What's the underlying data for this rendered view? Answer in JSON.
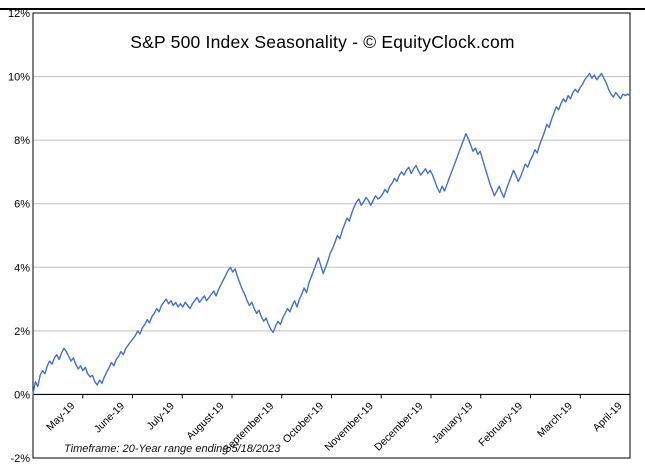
{
  "colors": {
    "line": "#4472C4",
    "gridline": "#C0C0C0",
    "axis": "#000000",
    "border": "#000000",
    "background": "#FFFFFF"
  },
  "footer": {
    "note": "Timeframe: 20-Year range ending 5/18/2023"
  },
  "chart_data": {
    "type": "line",
    "title": "S&P 500 Index Seasonality - © EquityClock.com",
    "note": "Timeframe: 20-Year range ending 5/18/2023",
    "categories": [
      "May-19",
      "June-19",
      "July-19",
      "August-19",
      "September-19",
      "October-19",
      "November-19",
      "December-19",
      "January-19",
      "February-19",
      "March-19",
      "April-19"
    ],
    "y_ticks": [
      "12%",
      "10%",
      "8%",
      "6%",
      "4%",
      "2%",
      "0%",
      "-2%"
    ],
    "ylim": [
      -2,
      12
    ],
    "grid": "horizontal",
    "legend": "none",
    "points_per_month": 21,
    "values": [
      0.0,
      0.4,
      0.25,
      0.6,
      0.75,
      0.65,
      0.9,
      1.05,
      0.95,
      1.15,
      1.25,
      1.1,
      1.3,
      1.45,
      1.35,
      1.2,
      1.05,
      1.15,
      0.95,
      0.8,
      0.9,
      0.75,
      0.85,
      0.65,
      0.55,
      0.6,
      0.4,
      0.3,
      0.45,
      0.35,
      0.55,
      0.7,
      0.85,
      1.0,
      0.9,
      1.1,
      1.2,
      1.35,
      1.25,
      1.45,
      1.55,
      1.65,
      1.75,
      1.85,
      2.0,
      1.9,
      2.1,
      2.2,
      2.35,
      2.25,
      2.45,
      2.55,
      2.7,
      2.6,
      2.8,
      2.9,
      3.0,
      2.85,
      2.95,
      2.8,
      2.9,
      2.75,
      2.85,
      2.75,
      2.9,
      2.8,
      2.7,
      2.85,
      2.95,
      3.05,
      2.9,
      3.0,
      3.1,
      2.95,
      3.05,
      3.15,
      3.25,
      3.1,
      3.3,
      3.45,
      3.6,
      3.75,
      3.9,
      4.0,
      3.85,
      3.95,
      3.7,
      3.5,
      3.3,
      3.15,
      2.95,
      2.8,
      2.9,
      2.7,
      2.55,
      2.65,
      2.45,
      2.3,
      2.4,
      2.2,
      2.05,
      1.95,
      2.15,
      2.3,
      2.2,
      2.4,
      2.55,
      2.7,
      2.6,
      2.8,
      2.95,
      2.75,
      3.0,
      3.15,
      3.35,
      3.2,
      3.5,
      3.7,
      3.9,
      4.1,
      4.3,
      4.05,
      3.8,
      4.0,
      4.2,
      4.45,
      4.6,
      4.8,
      5.0,
      4.9,
      5.15,
      5.35,
      5.55,
      5.45,
      5.7,
      5.9,
      6.05,
      6.15,
      5.95,
      6.05,
      6.2,
      6.1,
      5.95,
      6.1,
      6.25,
      6.15,
      6.2,
      6.3,
      6.45,
      6.35,
      6.55,
      6.65,
      6.8,
      6.7,
      6.9,
      7.0,
      6.9,
      7.05,
      7.15,
      6.95,
      7.1,
      7.2,
      7.05,
      6.9,
      7.0,
      7.1,
      6.95,
      7.05,
      6.9,
      6.7,
      6.5,
      6.35,
      6.55,
      6.4,
      6.6,
      6.8,
      7.0,
      7.2,
      7.4,
      7.6,
      7.8,
      8.0,
      8.2,
      8.05,
      7.85,
      7.65,
      7.75,
      7.55,
      7.65,
      7.4,
      7.15,
      6.9,
      6.65,
      6.45,
      6.25,
      6.4,
      6.55,
      6.35,
      6.2,
      6.45,
      6.65,
      6.85,
      7.05,
      6.9,
      6.7,
      6.85,
      7.05,
      7.25,
      7.15,
      7.35,
      7.5,
      7.7,
      7.6,
      7.85,
      8.05,
      8.25,
      8.5,
      8.4,
      8.65,
      8.85,
      9.05,
      8.95,
      9.15,
      9.3,
      9.2,
      9.4,
      9.3,
      9.5,
      9.6,
      9.5,
      9.65,
      9.75,
      9.9,
      10.0,
      10.1,
      9.95,
      10.05,
      9.9,
      10.0,
      10.1,
      9.95,
      9.8,
      9.6,
      9.45,
      9.35,
      9.5,
      9.4,
      9.3,
      9.45,
      9.4,
      9.45,
      9.4
    ]
  }
}
